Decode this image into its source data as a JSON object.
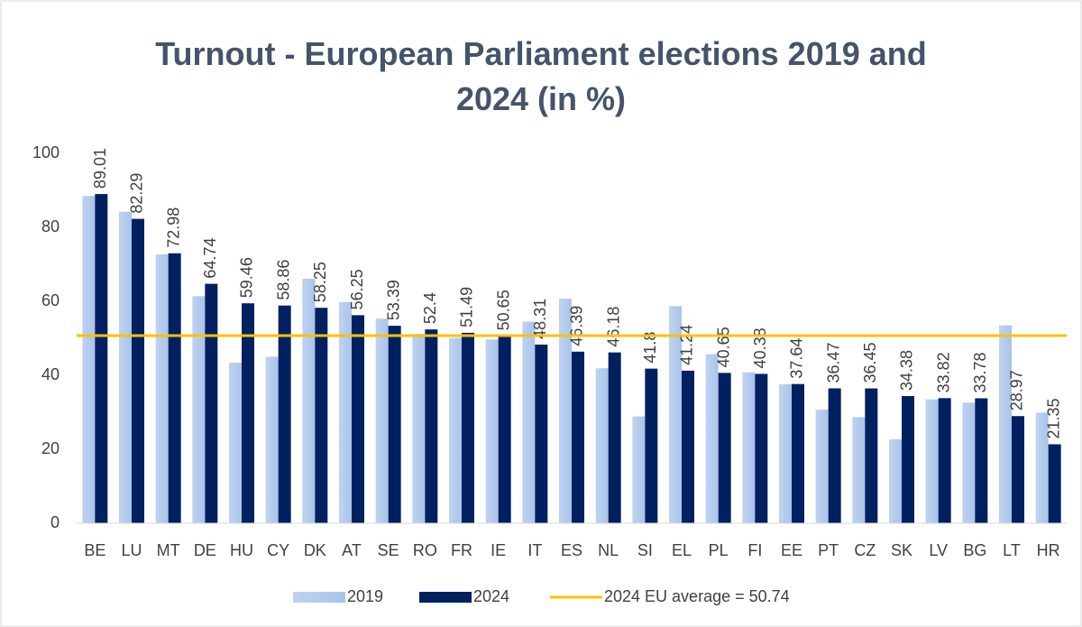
{
  "chart_data": {
    "type": "bar",
    "title": "Turnout - European Parliament elections 2019 and 2024 (in %)",
    "categories": [
      "BE",
      "LU",
      "MT",
      "DE",
      "HU",
      "CY",
      "DK",
      "AT",
      "SE",
      "RO",
      "FR",
      "IE",
      "IT",
      "ES",
      "NL",
      "SI",
      "EL",
      "PL",
      "FI",
      "EE",
      "PT",
      "CZ",
      "SK",
      "LV",
      "BG",
      "LT",
      "HR"
    ],
    "series": [
      {
        "name": "2019",
        "color": "#a9c4eb",
        "values": [
          88.5,
          84.2,
          72.7,
          61.4,
          43.4,
          45.0,
          66.1,
          59.8,
          55.3,
          51.2,
          50.1,
          49.7,
          54.5,
          60.7,
          41.9,
          28.9,
          58.7,
          45.7,
          40.8,
          37.6,
          30.7,
          28.7,
          22.7,
          33.5,
          32.6,
          53.5,
          29.9
        ]
      },
      {
        "name": "2024",
        "color": "#002060",
        "values": [
          89.01,
          82.29,
          72.98,
          64.74,
          59.46,
          58.86,
          58.25,
          56.25,
          53.39,
          52.4,
          51.49,
          50.65,
          48.31,
          46.39,
          46.18,
          41.8,
          41.24,
          40.65,
          40.38,
          37.64,
          36.47,
          36.45,
          34.38,
          33.82,
          33.78,
          28.97,
          21.35
        ]
      }
    ],
    "average": {
      "name": "2024 EU average = 50.74",
      "value": 50.74,
      "color": "#ffc000"
    },
    "ylim": [
      0,
      100
    ],
    "yticks": [
      0,
      20,
      40,
      60,
      80,
      100
    ],
    "grid": false
  }
}
